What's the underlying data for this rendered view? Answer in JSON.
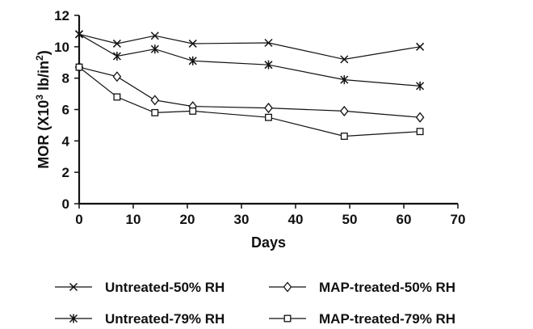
{
  "chart_data": {
    "type": "line",
    "xlabel": "Days",
    "ylabel": "MOR (X10³ lb/in²)",
    "ylabel_parts": {
      "prefix": "MOR (X10",
      "sup1": "3",
      "middle": " lb/in",
      "sup2": "2",
      "suffix": ")"
    },
    "xlim": [
      0,
      70
    ],
    "ylim": [
      0,
      12
    ],
    "xticks": [
      0,
      10,
      20,
      30,
      40,
      50,
      60,
      70
    ],
    "yticks": [
      0,
      2,
      4,
      6,
      8,
      10,
      12
    ],
    "grid": false,
    "legend_position": "bottom",
    "series": [
      {
        "name": "Untreated-50% RH",
        "marker": "x",
        "x": [
          0,
          7,
          14,
          21,
          35,
          49,
          63
        ],
        "y": [
          10.8,
          10.2,
          10.7,
          10.2,
          10.25,
          9.2,
          10.0
        ]
      },
      {
        "name": "Untreated-79% RH",
        "marker": "star",
        "x": [
          0,
          7,
          14,
          21,
          35,
          49,
          63
        ],
        "y": [
          10.8,
          9.4,
          9.85,
          9.1,
          8.85,
          7.9,
          7.5
        ]
      },
      {
        "name": "MAP-treated-50% RH",
        "marker": "diamond",
        "x": [
          0,
          7,
          14,
          21,
          35,
          49,
          63
        ],
        "y": [
          8.7,
          8.1,
          6.6,
          6.2,
          6.1,
          5.9,
          5.5
        ]
      },
      {
        "name": "MAP-treated-79% RH",
        "marker": "square",
        "x": [
          0,
          7,
          14,
          21,
          35,
          49,
          63
        ],
        "y": [
          8.7,
          6.8,
          5.8,
          5.9,
          5.5,
          4.3,
          4.6
        ]
      }
    ]
  }
}
